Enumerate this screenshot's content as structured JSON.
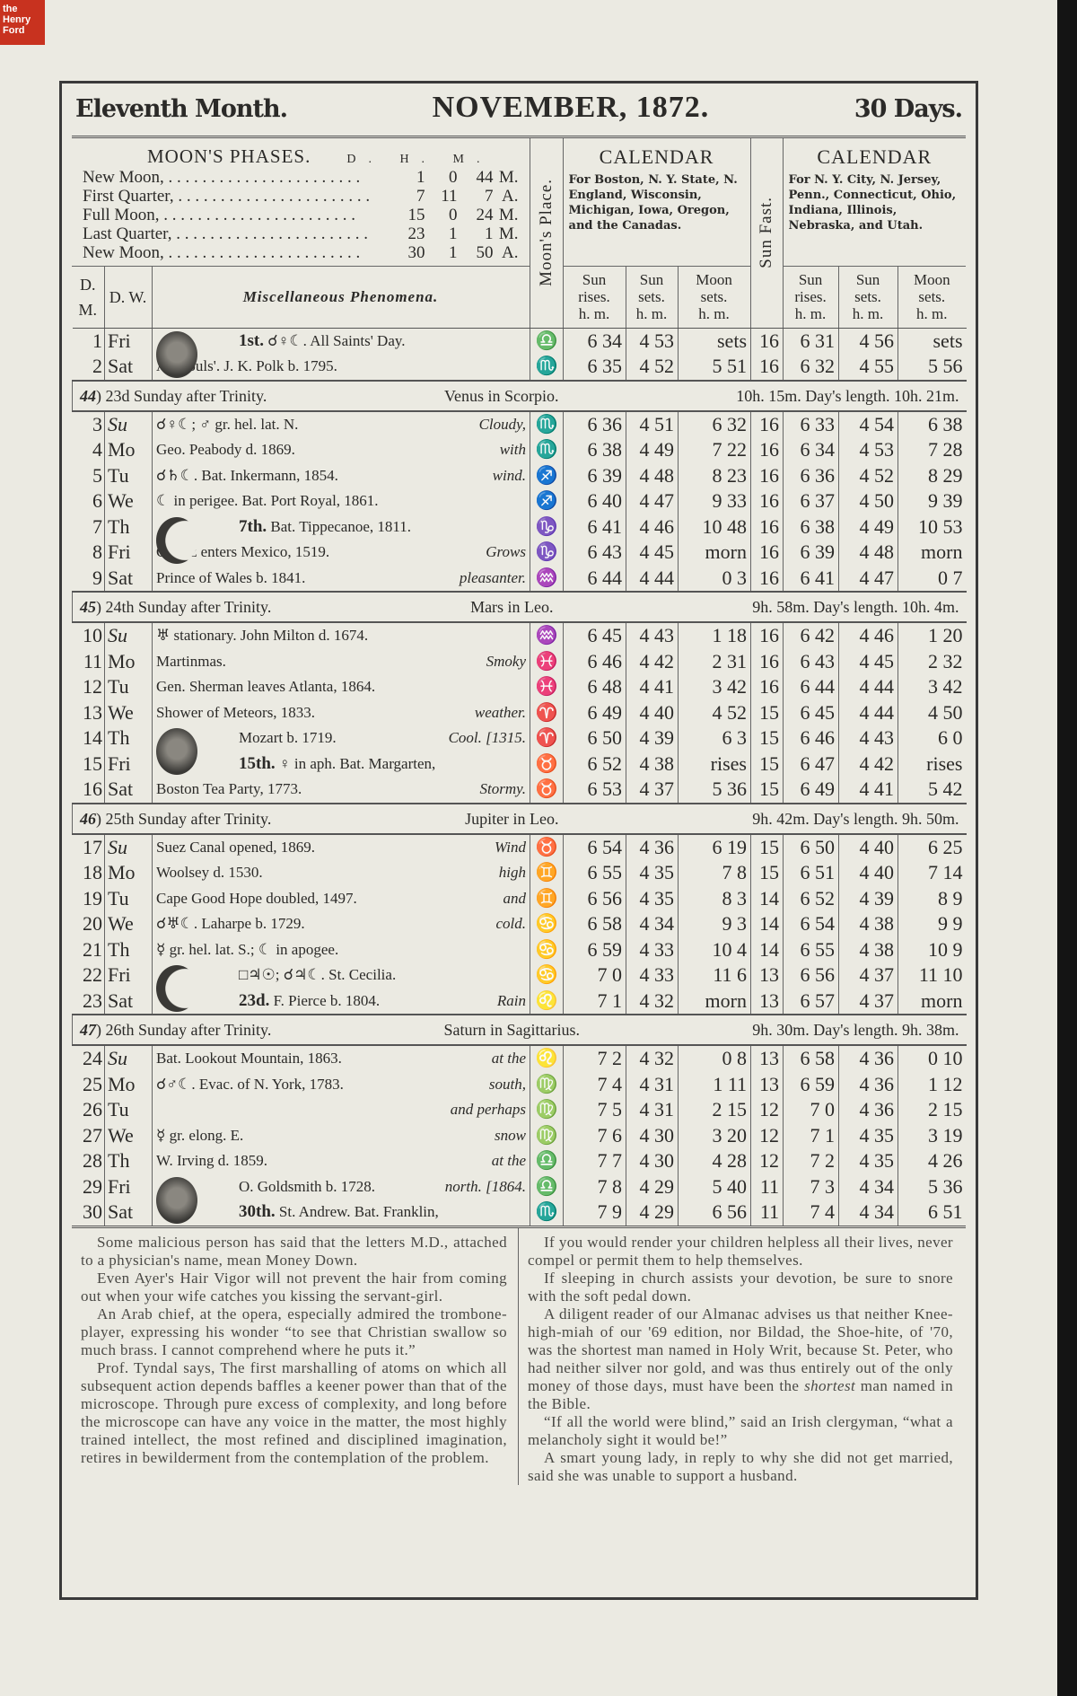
{
  "logo": {
    "text": "the Henry Ford",
    "color": "#c8321f"
  },
  "header": {
    "left": "Eleventh Month.",
    "center": "NOVEMBER, 1872.",
    "right": "30 Days."
  },
  "moon_phases": {
    "title": "MOON'S PHASES.",
    "columns": "D. H. M.",
    "rows": [
      {
        "name": "New Moon,",
        "d": "1",
        "h": "0",
        "m": "44",
        "ap": "M."
      },
      {
        "name": "First Quarter,",
        "d": "7",
        "h": "11",
        "m": "7",
        "ap": "A."
      },
      {
        "name": "Full Moon,",
        "d": "15",
        "h": "0",
        "m": "24",
        "ap": "M."
      },
      {
        "name": "Last Quarter,",
        "d": "23",
        "h": "1",
        "m": "1",
        "ap": "M."
      },
      {
        "name": "New Moon,",
        "d": "30",
        "h": "1",
        "m": "50",
        "ap": "A."
      }
    ]
  },
  "columns": {
    "dm": "D. M.",
    "dw": "D. W.",
    "misc": "Miscellaneous Phenomena.",
    "moons_place": "Moon's Place.",
    "s": "S.",
    "sun_fast": "Sun Fast.",
    "m": "m.",
    "cal_title": "CALENDAR",
    "cal1_desc": "For Boston, N. Y. State, N. England, Wisconsin, Michigan, Iowa, Oregon, and the Canadas.",
    "cal2_desc": "For N. Y. City, N. Jersey, Penn., Connecticut, Ohio, Indiana, Illinois, Nebraska, and Utah.",
    "sun_rises": "Sun rises.",
    "sun_sets": "Sun sets.",
    "moon_sets": "Moon sets.",
    "hm": "h. m."
  },
  "sign_glyphs": {
    "libra": "♎",
    "scorpio": "♏",
    "sagittarius": "♐",
    "capricorn": "♑",
    "aquarius": "♒",
    "pisces": "♓",
    "aries": "♈",
    "taurus": "♉",
    "gemini": "♊",
    "cancer": "♋",
    "leo": "♌",
    "virgo": "♍"
  },
  "blocks": [
    {
      "rows": [
        {
          "dm": "1",
          "dw": "Fri",
          "moon": "full-face",
          "pl": "1st.",
          "text": "☌♀☾.  All Saints' Day.",
          "w": "",
          "sign": "libra",
          "b": [
            "6 34",
            "4 53",
            "sets"
          ],
          "fast": "16",
          "n": [
            "6 31",
            "4 56",
            "sets"
          ]
        },
        {
          "dm": "2",
          "dw": "Sat",
          "text": "All Souls'.  J. K. Polk b. 1795.",
          "w": "",
          "sign": "scorpio",
          "b": [
            "6 35",
            "4 52",
            "5 51"
          ],
          "fast": "16",
          "n": [
            "6 32",
            "4 55",
            "5 56"
          ]
        }
      ]
    },
    {
      "section": {
        "wk": "44",
        "sunday": "23d Sunday after Trinity.",
        "planet": "Venus in Scorpio.",
        "len": "10h. 15m.  Day's length.  10h. 21m."
      },
      "rows": [
        {
          "dm": "3",
          "dw": "Su",
          "text": "☌♀☾; ♂ gr. hel. lat. N.",
          "w": "Cloudy,",
          "sign": "scorpio",
          "b": [
            "6 36",
            "4 51",
            "6 32"
          ],
          "fast": "16",
          "n": [
            "6 33",
            "4 54",
            "6 38"
          ]
        },
        {
          "dm": "4",
          "dw": "Mo",
          "text": "Geo. Peabody d. 1869.",
          "w": "with",
          "sign": "scorpio",
          "b": [
            "6 38",
            "4 49",
            "7 22"
          ],
          "fast": "16",
          "n": [
            "6 34",
            "4 53",
            "7 28"
          ]
        },
        {
          "dm": "5",
          "dw": "Tu",
          "text": "☌♄☾.  Bat. Inkermann, 1854.",
          "w": "wind.",
          "sign": "sagittarius",
          "b": [
            "6 39",
            "4 48",
            "8 23"
          ],
          "fast": "16",
          "n": [
            "6 36",
            "4 52",
            "8 29"
          ]
        },
        {
          "dm": "6",
          "dw": "We",
          "text": "☾ in perigee.  Bat. Port Royal, 1861.",
          "w": "",
          "sign": "sagittarius",
          "b": [
            "6 40",
            "4 47",
            "9 33"
          ],
          "fast": "16",
          "n": [
            "6 37",
            "4 50",
            "9 39"
          ]
        },
        {
          "dm": "7",
          "dw": "Th",
          "moon": "first-quarter",
          "pl": "7th.",
          "text": "Bat. Tippecanoe, 1811.",
          "w": "",
          "sign": "capricorn",
          "b": [
            "6 41",
            "4 46",
            "10 48"
          ],
          "fast": "16",
          "n": [
            "6 38",
            "4 49",
            "10 53"
          ]
        },
        {
          "dm": "8",
          "dw": "Fri",
          "text": "Cortez enters Mexico, 1519.",
          "w": "Grows",
          "sign": "capricorn",
          "b": [
            "6 43",
            "4 45",
            "morn"
          ],
          "fast": "16",
          "n": [
            "6 39",
            "4 48",
            "morn"
          ]
        },
        {
          "dm": "9",
          "dw": "Sat",
          "text": "Prince of Wales b. 1841.",
          "w": "pleasanter.",
          "sign": "aquarius",
          "b": [
            "6 44",
            "4 44",
            "0 3"
          ],
          "fast": "16",
          "n": [
            "6 41",
            "4 47",
            "0 7"
          ]
        }
      ]
    },
    {
      "section": {
        "wk": "45",
        "sunday": "24th Sunday after Trinity.",
        "planet": "Mars in Leo.",
        "len": "9h. 58m.  Day's length.  10h. 4m."
      },
      "rows": [
        {
          "dm": "10",
          "dw": "Su",
          "text": "♅ stationary.  John Milton d. 1674.",
          "w": "",
          "sign": "aquarius",
          "b": [
            "6 45",
            "4 43",
            "1 18"
          ],
          "fast": "16",
          "n": [
            "6 42",
            "4 46",
            "1 20"
          ]
        },
        {
          "dm": "11",
          "dw": "Mo",
          "text": "Martinmas.",
          "w": "Smoky",
          "sign": "pisces",
          "b": [
            "6 46",
            "4 42",
            "2 31"
          ],
          "fast": "16",
          "n": [
            "6 43",
            "4 45",
            "2 32"
          ]
        },
        {
          "dm": "12",
          "dw": "Tu",
          "text": "Gen. Sherman leaves Atlanta, 1864.",
          "w": "",
          "sign": "pisces",
          "b": [
            "6 48",
            "4 41",
            "3 42"
          ],
          "fast": "16",
          "n": [
            "6 44",
            "4 44",
            "3 42"
          ]
        },
        {
          "dm": "13",
          "dw": "We",
          "text": "Shower of Meteors, 1833.",
          "w": "weather.",
          "sign": "aries",
          "b": [
            "6 49",
            "4 40",
            "4 52"
          ],
          "fast": "15",
          "n": [
            "6 45",
            "4 44",
            "4 50"
          ]
        },
        {
          "dm": "14",
          "dw": "Th",
          "moon": "full-face",
          "pl": "",
          "text": "Mozart b. 1719.",
          "w": "Cool. [1315.",
          "sign": "aries",
          "b": [
            "6 50",
            "4 39",
            "6 3"
          ],
          "fast": "15",
          "n": [
            "6 46",
            "4 43",
            "6 0"
          ]
        },
        {
          "dm": "15",
          "dw": "Fri",
          "cont": true,
          "pl": "15th.",
          "text": "♀ in aph.  Bat. Margarten,",
          "w": "",
          "sign": "taurus",
          "b": [
            "6 52",
            "4 38",
            "rises"
          ],
          "fast": "15",
          "n": [
            "6 47",
            "4 42",
            "rises"
          ]
        },
        {
          "dm": "16",
          "dw": "Sat",
          "text": "Boston Tea Party, 1773.",
          "w": "Stormy.",
          "sign": "taurus",
          "b": [
            "6 53",
            "4 37",
            "5 36"
          ],
          "fast": "15",
          "n": [
            "6 49",
            "4 41",
            "5 42"
          ]
        }
      ]
    },
    {
      "section": {
        "wk": "46",
        "sunday": "25th Sunday after Trinity.",
        "planet": "Jupiter in Leo.",
        "len": "9h. 42m.  Day's length.  9h. 50m."
      },
      "rows": [
        {
          "dm": "17",
          "dw": "Su",
          "text": "Suez Canal opened, 1869.",
          "w": "Wind",
          "sign": "taurus",
          "b": [
            "6 54",
            "4 36",
            "6 19"
          ],
          "fast": "15",
          "n": [
            "6 50",
            "4 40",
            "6 25"
          ]
        },
        {
          "dm": "18",
          "dw": "Mo",
          "text": "Woolsey d. 1530.",
          "w": "high",
          "sign": "gemini",
          "b": [
            "6 55",
            "4 35",
            "7 8"
          ],
          "fast": "15",
          "n": [
            "6 51",
            "4 40",
            "7 14"
          ]
        },
        {
          "dm": "19",
          "dw": "Tu",
          "text": "Cape Good Hope doubled, 1497.",
          "w": "and",
          "sign": "gemini",
          "b": [
            "6 56",
            "4 35",
            "8 3"
          ],
          "fast": "14",
          "n": [
            "6 52",
            "4 39",
            "8 9"
          ]
        },
        {
          "dm": "20",
          "dw": "We",
          "text": "☌♅☾.  Laharpe b. 1729.",
          "w": "cold.",
          "sign": "cancer",
          "b": [
            "6 58",
            "4 34",
            "9 3"
          ],
          "fast": "14",
          "n": [
            "6 54",
            "4 38",
            "9 9"
          ]
        },
        {
          "dm": "21",
          "dw": "Th",
          "text": "☿ gr. hel. lat. S.; ☾ in apogee.",
          "w": "",
          "sign": "cancer",
          "b": [
            "6 59",
            "4 33",
            "10 4"
          ],
          "fast": "14",
          "n": [
            "6 55",
            "4 38",
            "10 9"
          ]
        },
        {
          "dm": "22",
          "dw": "Fri",
          "moon": "last-quarter",
          "pl": "",
          "text": "□♃☉; ☌♃☾.  St. Cecilia.",
          "w": "",
          "sign": "cancer",
          "b": [
            "7 0",
            "4 33",
            "11 6"
          ],
          "fast": "13",
          "n": [
            "6 56",
            "4 37",
            "11 10"
          ]
        },
        {
          "dm": "23",
          "dw": "Sat",
          "cont": true,
          "pl": "23d.",
          "text": "F. Pierce b. 1804.",
          "w": "Rain",
          "sign": "leo",
          "b": [
            "7 1",
            "4 32",
            "morn"
          ],
          "fast": "13",
          "n": [
            "6 57",
            "4 37",
            "morn"
          ]
        }
      ]
    },
    {
      "section": {
        "wk": "47",
        "sunday": "26th Sunday after Trinity.",
        "planet": "Saturn in Sagittarius.",
        "len": "9h. 30m.  Day's length.  9h. 38m."
      },
      "rows": [
        {
          "dm": "24",
          "dw": "Su",
          "text": "Bat. Lookout Mountain, 1863.",
          "w": "at the",
          "sign": "leo",
          "b": [
            "7 2",
            "4 32",
            "0 8"
          ],
          "fast": "13",
          "n": [
            "6 58",
            "4 36",
            "0 10"
          ]
        },
        {
          "dm": "25",
          "dw": "Mo",
          "text": "☌♂☾.  Evac. of N. York, 1783.",
          "w": "south,",
          "sign": "virgo",
          "b": [
            "7 4",
            "4 31",
            "1 11"
          ],
          "fast": "13",
          "n": [
            "6 59",
            "4 36",
            "1 12"
          ]
        },
        {
          "dm": "26",
          "dw": "Tu",
          "text": "",
          "w": "and perhaps",
          "sign": "virgo",
          "b": [
            "7 5",
            "4 31",
            "2 15"
          ],
          "fast": "12",
          "n": [
            "7 0",
            "4 36",
            "2 15"
          ]
        },
        {
          "dm": "27",
          "dw": "We",
          "text": "☿ gr. elong. E.",
          "w": "snow",
          "sign": "virgo",
          "b": [
            "7 6",
            "4 30",
            "3 20"
          ],
          "fast": "12",
          "n": [
            "7 1",
            "4 35",
            "3 19"
          ]
        },
        {
          "dm": "28",
          "dw": "Th",
          "text": "W. Irving d. 1859.",
          "w": "at the",
          "sign": "libra",
          "b": [
            "7 7",
            "4 30",
            "4 28"
          ],
          "fast": "12",
          "n": [
            "7 2",
            "4 35",
            "4 26"
          ]
        },
        {
          "dm": "29",
          "dw": "Fri",
          "moon": "full-face",
          "pl": "",
          "text": "O. Goldsmith b. 1728.",
          "w": "north. [1864.",
          "sign": "libra",
          "b": [
            "7 8",
            "4 29",
            "5 40"
          ],
          "fast": "11",
          "n": [
            "7 3",
            "4 34",
            "5 36"
          ]
        },
        {
          "dm": "30",
          "dw": "Sat",
          "cont": true,
          "pl": "30th.",
          "text": "St. Andrew.  Bat. Franklin,",
          "w": "",
          "sign": "scorpio",
          "b": [
            "7 9",
            "4 29",
            "6 56"
          ],
          "fast": "11",
          "n": [
            "7 4",
            "4 34",
            "6 51"
          ]
        }
      ]
    }
  ],
  "anecdotes": {
    "left": [
      "Some malicious person has said that the letters M.D., attached to a physician's name, mean Money Down.",
      "Even Ayer's Hair Vigor will not prevent the hair from coming out when your wife catches you kissing the servant-girl.",
      "An Arab chief, at the opera, especially admired the trombone-player, expressing his wonder “to see that Christian swallow so much brass. I cannot comprehend where he puts it.”",
      "Prof. Tyndal says, The first marshalling of atoms on which all subsequent action depends baffles a keener power than that of the microscope. Through pure excess of complexity, and long before the microscope can have any voice in the matter, the most highly trained intellect, the most refined and disciplined imagination, retires in bewilderment from the contemplation of the problem."
    ],
    "right_1": "If you would render your children helpless all their lives, never compel or permit them to help themselves.",
    "right_2": "If sleeping in church assists your devotion, be sure to snore with the soft pedal down.",
    "right_3a": "A diligent reader of our Almanac advises us that neither Knee-high-miah of our '69 edition, nor Bildad, the Shoe-hite, of '70, was the shortest man named in Holy Writ, because St. Peter, who had neither silver nor gold, and was thus entirely out of the only money of those days, must have been the ",
    "right_3em": "shortest",
    "right_3b": " man named in the Bible.",
    "right_4": "“If all the world were blind,” said an Irish clergyman, “what a melancholy sight it would be!”",
    "right_5": "A smart young lady, in reply to why she did not get married, said she was unable to support a husband."
  }
}
